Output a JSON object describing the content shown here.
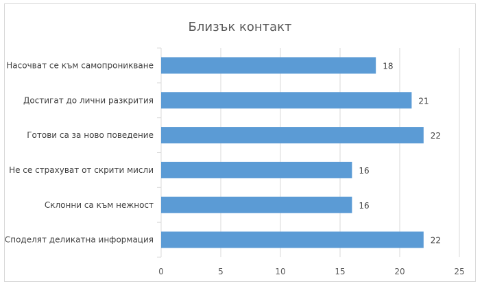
{
  "chart_data": {
    "type": "bar",
    "orientation": "horizontal",
    "title": "Близък контакт",
    "categories": [
      "Насочват се към самопроникване",
      "Достигат до лични разкрития",
      "Готови са за ново поведение",
      "Не се страхуват от скрити мисли",
      "Склонни са към нежност",
      "Споделят деликатна информация"
    ],
    "values": [
      18,
      21,
      22,
      16,
      16,
      22
    ],
    "xlim": [
      0,
      25
    ],
    "xticks": [
      "0",
      "5",
      "10",
      "15",
      "20",
      "25"
    ],
    "grid": true,
    "bar_color": "#5b9bd5"
  }
}
